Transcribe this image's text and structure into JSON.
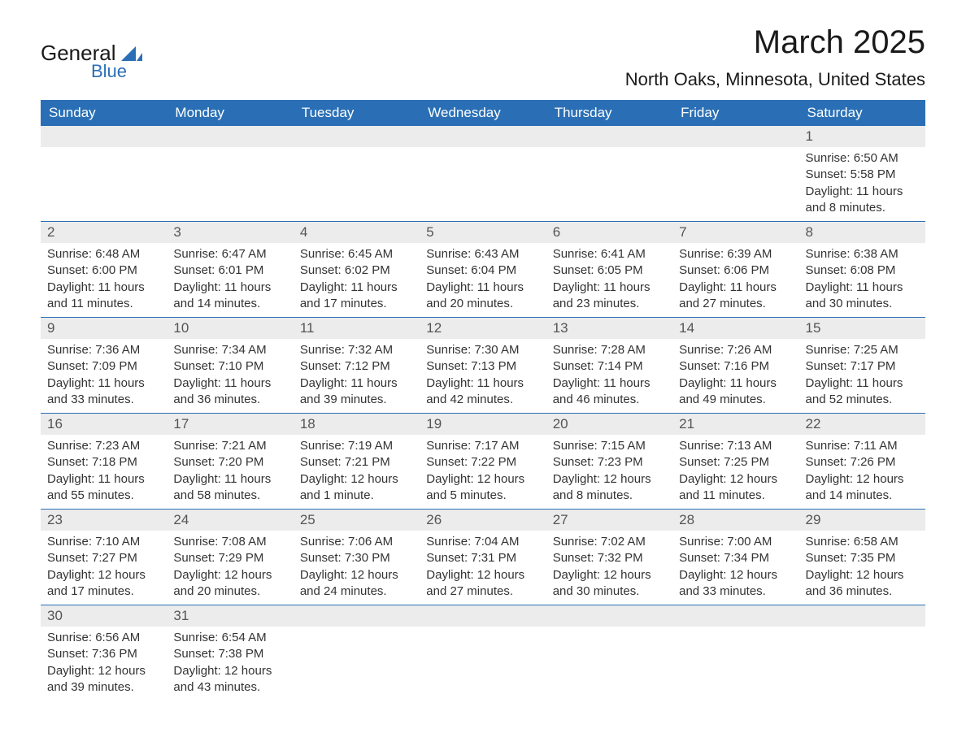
{
  "logo": {
    "line1": "General",
    "line2": "Blue"
  },
  "title": "March 2025",
  "location": "North Oaks, Minnesota, United States",
  "colors": {
    "header_bg": "#2a6fb5",
    "header_text": "#ffffff",
    "daynum_bg": "#ececec",
    "border": "#2a6fb5",
    "text": "#333333",
    "logo_accent": "#2a6fb5"
  },
  "fonts": {
    "title_size_pt": 30,
    "location_size_pt": 16,
    "header_size_pt": 13,
    "daynum_size_pt": 13,
    "body_size_pt": 11
  },
  "day_headers": [
    "Sunday",
    "Monday",
    "Tuesday",
    "Wednesday",
    "Thursday",
    "Friday",
    "Saturday"
  ],
  "weeks": [
    [
      {
        "n": "",
        "sr": "",
        "ss": "",
        "dl": ""
      },
      {
        "n": "",
        "sr": "",
        "ss": "",
        "dl": ""
      },
      {
        "n": "",
        "sr": "",
        "ss": "",
        "dl": ""
      },
      {
        "n": "",
        "sr": "",
        "ss": "",
        "dl": ""
      },
      {
        "n": "",
        "sr": "",
        "ss": "",
        "dl": ""
      },
      {
        "n": "",
        "sr": "",
        "ss": "",
        "dl": ""
      },
      {
        "n": "1",
        "sr": "Sunrise: 6:50 AM",
        "ss": "Sunset: 5:58 PM",
        "dl": "Daylight: 11 hours and 8 minutes."
      }
    ],
    [
      {
        "n": "2",
        "sr": "Sunrise: 6:48 AM",
        "ss": "Sunset: 6:00 PM",
        "dl": "Daylight: 11 hours and 11 minutes."
      },
      {
        "n": "3",
        "sr": "Sunrise: 6:47 AM",
        "ss": "Sunset: 6:01 PM",
        "dl": "Daylight: 11 hours and 14 minutes."
      },
      {
        "n": "4",
        "sr": "Sunrise: 6:45 AM",
        "ss": "Sunset: 6:02 PM",
        "dl": "Daylight: 11 hours and 17 minutes."
      },
      {
        "n": "5",
        "sr": "Sunrise: 6:43 AM",
        "ss": "Sunset: 6:04 PM",
        "dl": "Daylight: 11 hours and 20 minutes."
      },
      {
        "n": "6",
        "sr": "Sunrise: 6:41 AM",
        "ss": "Sunset: 6:05 PM",
        "dl": "Daylight: 11 hours and 23 minutes."
      },
      {
        "n": "7",
        "sr": "Sunrise: 6:39 AM",
        "ss": "Sunset: 6:06 PM",
        "dl": "Daylight: 11 hours and 27 minutes."
      },
      {
        "n": "8",
        "sr": "Sunrise: 6:38 AM",
        "ss": "Sunset: 6:08 PM",
        "dl": "Daylight: 11 hours and 30 minutes."
      }
    ],
    [
      {
        "n": "9",
        "sr": "Sunrise: 7:36 AM",
        "ss": "Sunset: 7:09 PM",
        "dl": "Daylight: 11 hours and 33 minutes."
      },
      {
        "n": "10",
        "sr": "Sunrise: 7:34 AM",
        "ss": "Sunset: 7:10 PM",
        "dl": "Daylight: 11 hours and 36 minutes."
      },
      {
        "n": "11",
        "sr": "Sunrise: 7:32 AM",
        "ss": "Sunset: 7:12 PM",
        "dl": "Daylight: 11 hours and 39 minutes."
      },
      {
        "n": "12",
        "sr": "Sunrise: 7:30 AM",
        "ss": "Sunset: 7:13 PM",
        "dl": "Daylight: 11 hours and 42 minutes."
      },
      {
        "n": "13",
        "sr": "Sunrise: 7:28 AM",
        "ss": "Sunset: 7:14 PM",
        "dl": "Daylight: 11 hours and 46 minutes."
      },
      {
        "n": "14",
        "sr": "Sunrise: 7:26 AM",
        "ss": "Sunset: 7:16 PM",
        "dl": "Daylight: 11 hours and 49 minutes."
      },
      {
        "n": "15",
        "sr": "Sunrise: 7:25 AM",
        "ss": "Sunset: 7:17 PM",
        "dl": "Daylight: 11 hours and 52 minutes."
      }
    ],
    [
      {
        "n": "16",
        "sr": "Sunrise: 7:23 AM",
        "ss": "Sunset: 7:18 PM",
        "dl": "Daylight: 11 hours and 55 minutes."
      },
      {
        "n": "17",
        "sr": "Sunrise: 7:21 AM",
        "ss": "Sunset: 7:20 PM",
        "dl": "Daylight: 11 hours and 58 minutes."
      },
      {
        "n": "18",
        "sr": "Sunrise: 7:19 AM",
        "ss": "Sunset: 7:21 PM",
        "dl": "Daylight: 12 hours and 1 minute."
      },
      {
        "n": "19",
        "sr": "Sunrise: 7:17 AM",
        "ss": "Sunset: 7:22 PM",
        "dl": "Daylight: 12 hours and 5 minutes."
      },
      {
        "n": "20",
        "sr": "Sunrise: 7:15 AM",
        "ss": "Sunset: 7:23 PM",
        "dl": "Daylight: 12 hours and 8 minutes."
      },
      {
        "n": "21",
        "sr": "Sunrise: 7:13 AM",
        "ss": "Sunset: 7:25 PM",
        "dl": "Daylight: 12 hours and 11 minutes."
      },
      {
        "n": "22",
        "sr": "Sunrise: 7:11 AM",
        "ss": "Sunset: 7:26 PM",
        "dl": "Daylight: 12 hours and 14 minutes."
      }
    ],
    [
      {
        "n": "23",
        "sr": "Sunrise: 7:10 AM",
        "ss": "Sunset: 7:27 PM",
        "dl": "Daylight: 12 hours and 17 minutes."
      },
      {
        "n": "24",
        "sr": "Sunrise: 7:08 AM",
        "ss": "Sunset: 7:29 PM",
        "dl": "Daylight: 12 hours and 20 minutes."
      },
      {
        "n": "25",
        "sr": "Sunrise: 7:06 AM",
        "ss": "Sunset: 7:30 PM",
        "dl": "Daylight: 12 hours and 24 minutes."
      },
      {
        "n": "26",
        "sr": "Sunrise: 7:04 AM",
        "ss": "Sunset: 7:31 PM",
        "dl": "Daylight: 12 hours and 27 minutes."
      },
      {
        "n": "27",
        "sr": "Sunrise: 7:02 AM",
        "ss": "Sunset: 7:32 PM",
        "dl": "Daylight: 12 hours and 30 minutes."
      },
      {
        "n": "28",
        "sr": "Sunrise: 7:00 AM",
        "ss": "Sunset: 7:34 PM",
        "dl": "Daylight: 12 hours and 33 minutes."
      },
      {
        "n": "29",
        "sr": "Sunrise: 6:58 AM",
        "ss": "Sunset: 7:35 PM",
        "dl": "Daylight: 12 hours and 36 minutes."
      }
    ],
    [
      {
        "n": "30",
        "sr": "Sunrise: 6:56 AM",
        "ss": "Sunset: 7:36 PM",
        "dl": "Daylight: 12 hours and 39 minutes."
      },
      {
        "n": "31",
        "sr": "Sunrise: 6:54 AM",
        "ss": "Sunset: 7:38 PM",
        "dl": "Daylight: 12 hours and 43 minutes."
      },
      {
        "n": "",
        "sr": "",
        "ss": "",
        "dl": ""
      },
      {
        "n": "",
        "sr": "",
        "ss": "",
        "dl": ""
      },
      {
        "n": "",
        "sr": "",
        "ss": "",
        "dl": ""
      },
      {
        "n": "",
        "sr": "",
        "ss": "",
        "dl": ""
      },
      {
        "n": "",
        "sr": "",
        "ss": "",
        "dl": ""
      }
    ]
  ]
}
